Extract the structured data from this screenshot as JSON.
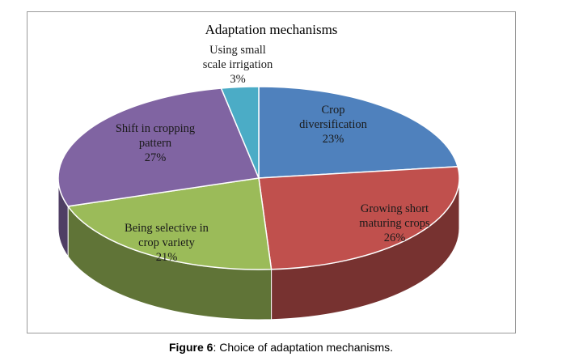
{
  "chart_data": {
    "type": "pie",
    "title": "Adaptation mechanisms",
    "slices": [
      {
        "name": "Crop diversification",
        "label_lines": [
          "Crop",
          "diversification",
          "23%"
        ],
        "value": 23,
        "color": "#4f81bd"
      },
      {
        "name": "Growing short maturing crops",
        "label_lines": [
          "Growing short",
          "maturing crops",
          "26%"
        ],
        "value": 26,
        "color": "#c0504d"
      },
      {
        "name": "Being selective in crop variety",
        "label_lines": [
          "Being selective in",
          "crop variety",
          "21%"
        ],
        "value": 21,
        "color": "#9bbb59"
      },
      {
        "name": "Shift in cropping pattern",
        "label_lines": [
          "Shift in cropping",
          "pattern",
          "27%"
        ],
        "value": 27,
        "color": "#8064a2"
      },
      {
        "name": "Using small scale irrigation",
        "label_lines": [
          "Using small",
          "scale irrigation",
          "3%"
        ],
        "value": 3,
        "color": "#4bacc6"
      }
    ],
    "style": "3d-pie"
  },
  "caption": {
    "figure_label": "Figure 6",
    "text": ": Choice of adaptation mechanisms."
  }
}
